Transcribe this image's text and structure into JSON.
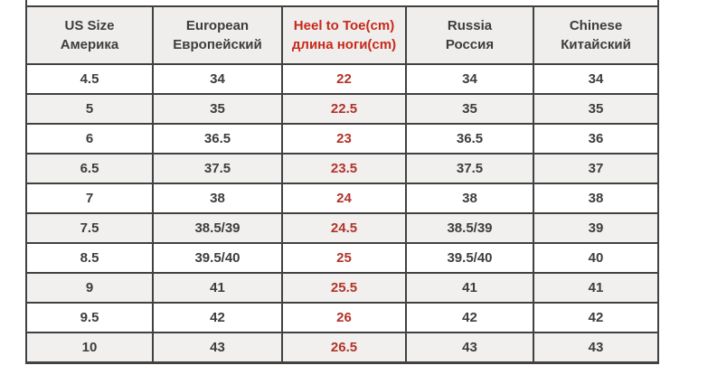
{
  "page": {
    "background": "#ffffff"
  },
  "colors": {
    "border": "#414141",
    "header_bg": "#efeeec",
    "shaded_row_bg": "#f1f0ee",
    "plain_row_bg": "#ffffff",
    "text": "#3d3d3d",
    "accent_red_header": "#c8291b",
    "accent_red_values": "#b23228"
  },
  "table": {
    "headers": [
      {
        "line1": "US Size",
        "line2": "Америка"
      },
      {
        "line1": "European",
        "line2": "Европейский"
      },
      {
        "line1": "Heel to Toe(cm)",
        "line2": "длина ноги(cm)"
      },
      {
        "line1": "Russia",
        "line2": "Россия"
      },
      {
        "line1": "Chinese",
        "line2": "Китайский"
      }
    ],
    "rows": [
      {
        "cells": [
          "4.5",
          "34",
          "22",
          "34",
          "34"
        ]
      },
      {
        "cells": [
          "5",
          "35",
          "22.5",
          "35",
          "35"
        ]
      },
      {
        "cells": [
          "6",
          "36.5",
          "23",
          "36.5",
          "36"
        ]
      },
      {
        "cells": [
          "6.5",
          "37.5",
          "23.5",
          "37.5",
          "37"
        ]
      },
      {
        "cells": [
          "7",
          "38",
          "24",
          "38",
          "38"
        ]
      },
      {
        "cells": [
          "7.5",
          "38.5/39",
          "24.5",
          "38.5/39",
          "39"
        ]
      },
      {
        "cells": [
          "8.5",
          "39.5/40",
          "25",
          "39.5/40",
          "40"
        ]
      },
      {
        "cells": [
          "9",
          "41",
          "25.5",
          "41",
          "41"
        ]
      },
      {
        "cells": [
          "9.5",
          "42",
          "26",
          "42",
          "42"
        ]
      },
      {
        "cells": [
          "10",
          "43",
          "26.5",
          "43",
          "43"
        ]
      }
    ]
  },
  "chart_data": {
    "type": "table",
    "title": "Shoe size conversion chart",
    "columns": [
      "US Size / Америка",
      "European / Европейский",
      "Heel to Toe(cm) / длина ноги(cm)",
      "Russia / Россия",
      "Chinese / Китайский"
    ],
    "rows": [
      [
        "4.5",
        "34",
        "22",
        "34",
        "34"
      ],
      [
        "5",
        "35",
        "22.5",
        "35",
        "35"
      ],
      [
        "6",
        "36.5",
        "23",
        "36.5",
        "36"
      ],
      [
        "6.5",
        "37.5",
        "23.5",
        "37.5",
        "37"
      ],
      [
        "7",
        "38",
        "24",
        "38",
        "38"
      ],
      [
        "7.5",
        "38.5/39",
        "24.5",
        "38.5/39",
        "39"
      ],
      [
        "8.5",
        "39.5/40",
        "25",
        "39.5/40",
        "40"
      ],
      [
        "9",
        "41",
        "25.5",
        "41",
        "41"
      ],
      [
        "9.5",
        "42",
        "26",
        "42",
        "42"
      ],
      [
        "10",
        "43",
        "26.5",
        "43",
        "43"
      ]
    ],
    "layout": {
      "accent_column_index": 2,
      "accent_color": "#b23228",
      "alternating_row_shading": true,
      "top_row_cut_off": true
    }
  }
}
